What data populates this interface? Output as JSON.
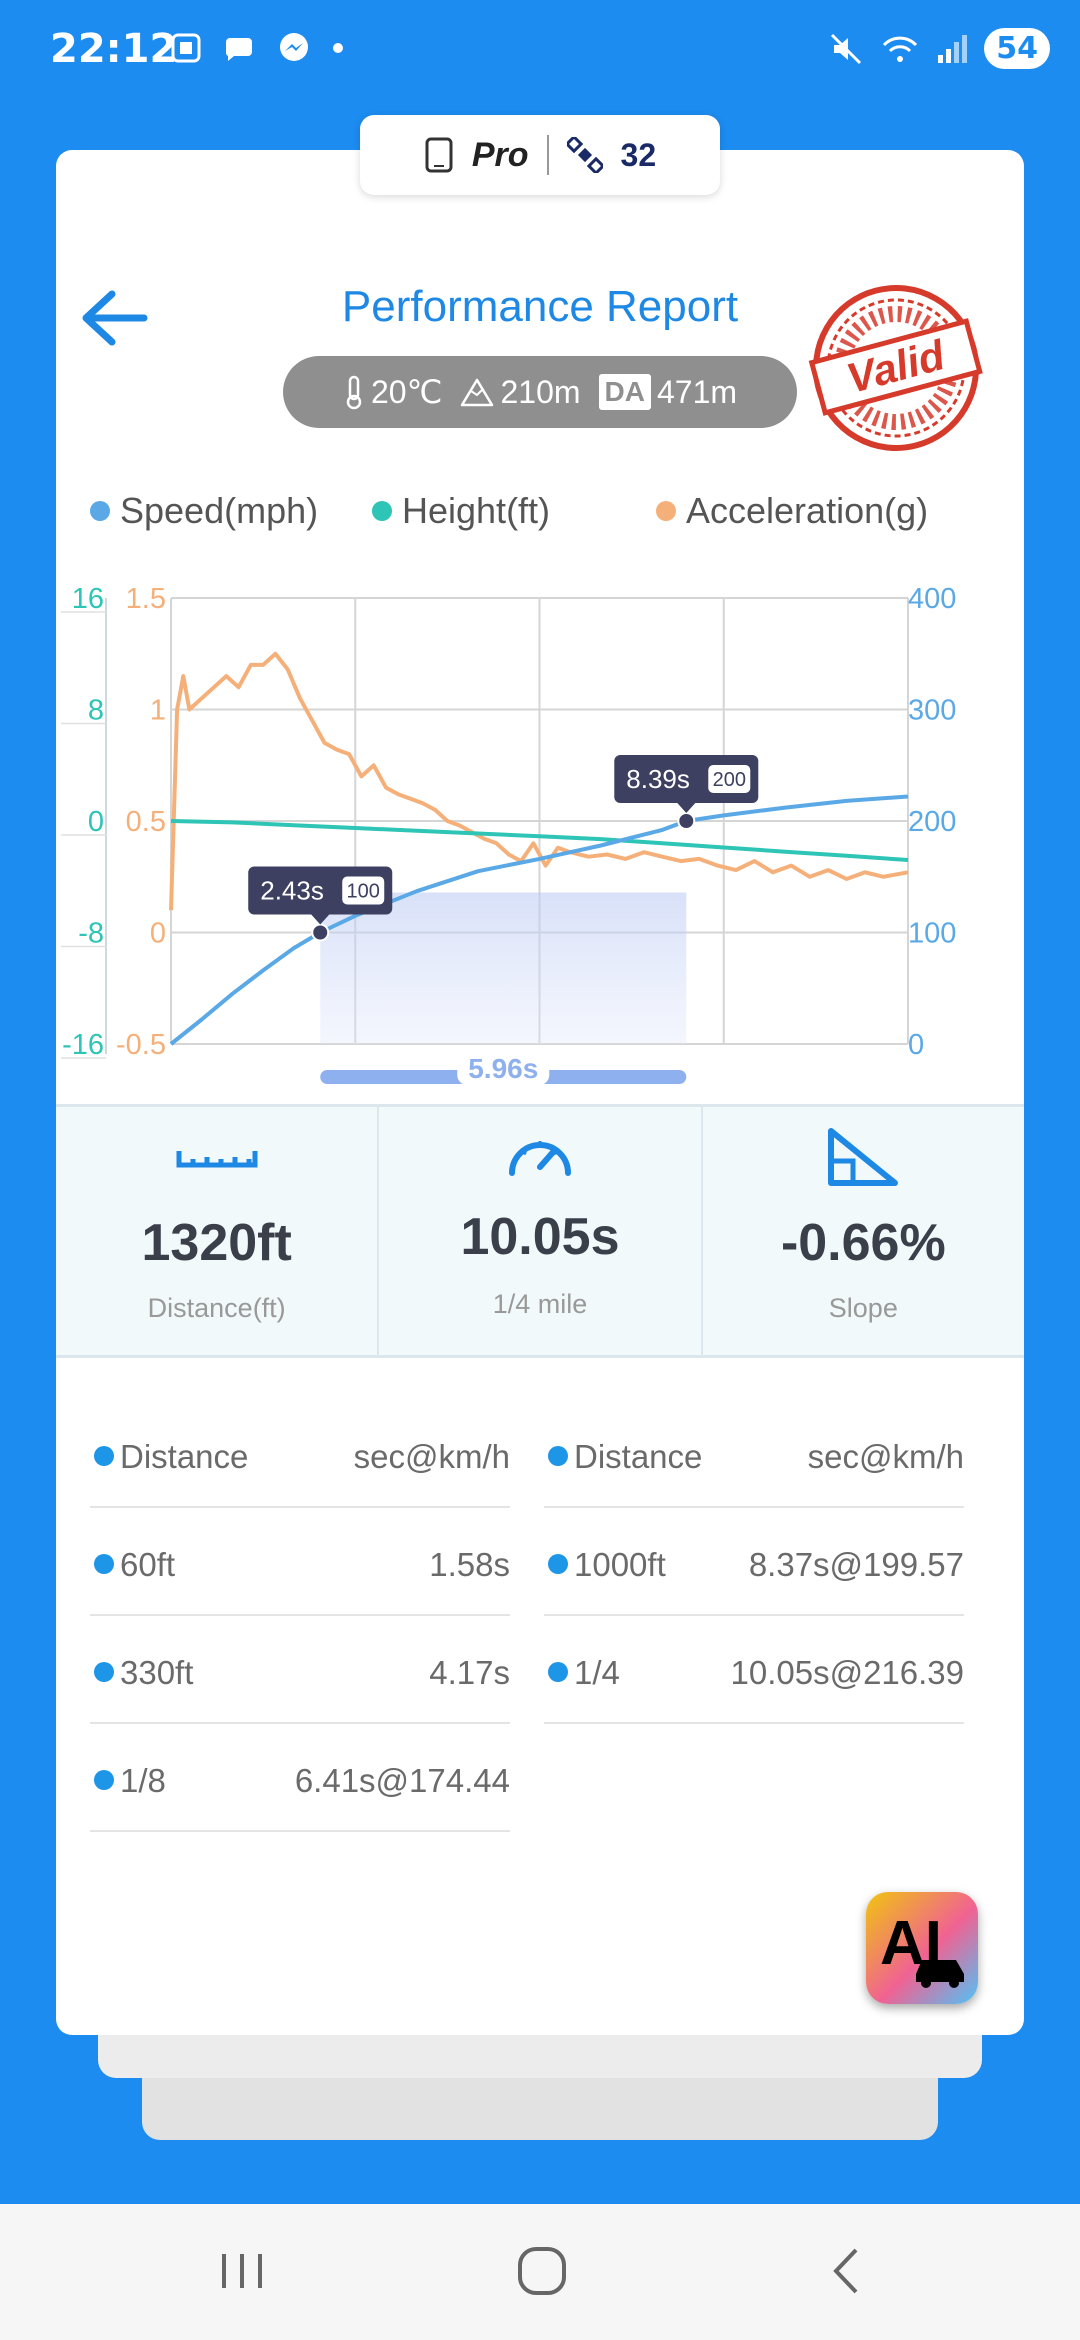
{
  "status_bar": {
    "time": "22:12",
    "battery": "54",
    "left_icons": [
      "screenshot-icon",
      "chat-icon",
      "messenger-icon",
      "dot-icon"
    ],
    "right_icons": [
      "mute-icon",
      "wifi-icon",
      "signal-icon",
      "battery-icon"
    ]
  },
  "badge": {
    "plan": "Pro",
    "count": "32"
  },
  "header": {
    "title": "Performance Report",
    "temperature": "20℃",
    "altitude": "210m",
    "da_label": "DA",
    "density_altitude": "471m",
    "stamp": "Valid"
  },
  "legend": {
    "speed": "Speed(mph)",
    "height": "Height(ft)",
    "acceleration": "Acceleration(g)"
  },
  "colors": {
    "speed": "#5aa9e6",
    "height": "#2ec4b6",
    "acceleration": "#f5b07a",
    "accent": "#1e88e5",
    "background": "#1c8cf0"
  },
  "chart_data": {
    "type": "line",
    "x_range": [
      0,
      12
    ],
    "axes": {
      "height_left": {
        "ticks": [
          "16",
          "8",
          "0",
          "-8",
          "-16"
        ],
        "range": [
          -16,
          16
        ]
      },
      "acceleration_left": {
        "ticks": [
          "1.5",
          "1",
          "0.5",
          "0",
          "-0.5"
        ],
        "range": [
          -0.5,
          1.5
        ]
      },
      "speed_right": {
        "ticks": [
          "400",
          "300",
          "200",
          "100",
          "0"
        ],
        "range": [
          0,
          400
        ]
      }
    },
    "grid": true,
    "series": [
      {
        "name": "Speed(mph)",
        "axis": "speed_right",
        "x": [
          0,
          0.5,
          1,
          1.5,
          2,
          2.43,
          3,
          4,
          5,
          6,
          7,
          8,
          8.39,
          9,
          10,
          11,
          12
        ],
        "y": [
          0,
          22,
          45,
          66,
          86,
          100,
          115,
          137,
          155,
          166,
          178,
          192,
          200,
          205,
          212,
          218,
          222
        ]
      },
      {
        "name": "Height(ft)",
        "axis": "height_left",
        "x": [
          0,
          1,
          2,
          3,
          4,
          5,
          6,
          7,
          8,
          9,
          10,
          11,
          12
        ],
        "y": [
          0,
          -0.1,
          -0.3,
          -0.5,
          -0.7,
          -0.9,
          -1.1,
          -1.3,
          -1.6,
          -1.9,
          -2.2,
          -2.5,
          -2.8
        ]
      },
      {
        "name": "Acceleration(g)",
        "axis": "acceleration_left",
        "x": [
          0,
          0.1,
          0.2,
          0.3,
          0.5,
          0.7,
          0.9,
          1.1,
          1.3,
          1.5,
          1.7,
          1.9,
          2.1,
          2.3,
          2.5,
          2.7,
          2.9,
          3.1,
          3.3,
          3.5,
          3.7,
          3.9,
          4.1,
          4.3,
          4.5,
          4.7,
          4.9,
          5.1,
          5.3,
          5.5,
          5.7,
          5.9,
          6.1,
          6.3,
          6.5,
          6.8,
          7.1,
          7.4,
          7.7,
          8.0,
          8.3,
          8.6,
          8.9,
          9.2,
          9.5,
          9.8,
          10.1,
          10.4,
          10.7,
          11.0,
          11.3,
          11.6,
          12.0
        ],
        "y": [
          0.1,
          1.0,
          1.15,
          1.0,
          1.05,
          1.1,
          1.15,
          1.1,
          1.2,
          1.2,
          1.25,
          1.18,
          1.05,
          0.95,
          0.85,
          0.82,
          0.8,
          0.7,
          0.75,
          0.65,
          0.62,
          0.6,
          0.58,
          0.55,
          0.5,
          0.48,
          0.45,
          0.42,
          0.4,
          0.35,
          0.32,
          0.4,
          0.3,
          0.38,
          0.36,
          0.34,
          0.35,
          0.33,
          0.36,
          0.34,
          0.32,
          0.33,
          0.3,
          0.28,
          0.32,
          0.27,
          0.3,
          0.25,
          0.28,
          0.24,
          0.27,
          0.25,
          0.27
        ]
      }
    ],
    "markers": [
      {
        "x": 2.43,
        "y": 100,
        "time_label": "2.43s",
        "speed_label": "100"
      },
      {
        "x": 8.39,
        "y": 200,
        "time_label": "8.39s",
        "speed_label": "200"
      }
    ],
    "range_label": "5.96s"
  },
  "stats": [
    {
      "icon": "ruler-icon",
      "value": "1320ft",
      "label": "Distance(ft)"
    },
    {
      "icon": "speedometer-icon",
      "value": "10.05s",
      "label": "1/4 mile"
    },
    {
      "icon": "slope-icon",
      "value": "-0.66%",
      "label": "Slope"
    }
  ],
  "splits": {
    "left": [
      {
        "name": "Distance",
        "value": "sec@km/h"
      },
      {
        "name": "60ft",
        "value": "1.58s"
      },
      {
        "name": "330ft",
        "value": "4.17s"
      },
      {
        "name": "1/8",
        "value": "6.41s@174.44"
      }
    ],
    "right": [
      {
        "name": "Distance",
        "value": "sec@km/h"
      },
      {
        "name": "1000ft",
        "value": "8.37s@199.57"
      },
      {
        "name": "1/4",
        "value": "10.05s@216.39"
      }
    ]
  },
  "ai_button": {
    "label": "AI"
  },
  "nav": {
    "icons": [
      "recent-apps-icon",
      "home-icon",
      "back-nav-icon"
    ]
  }
}
